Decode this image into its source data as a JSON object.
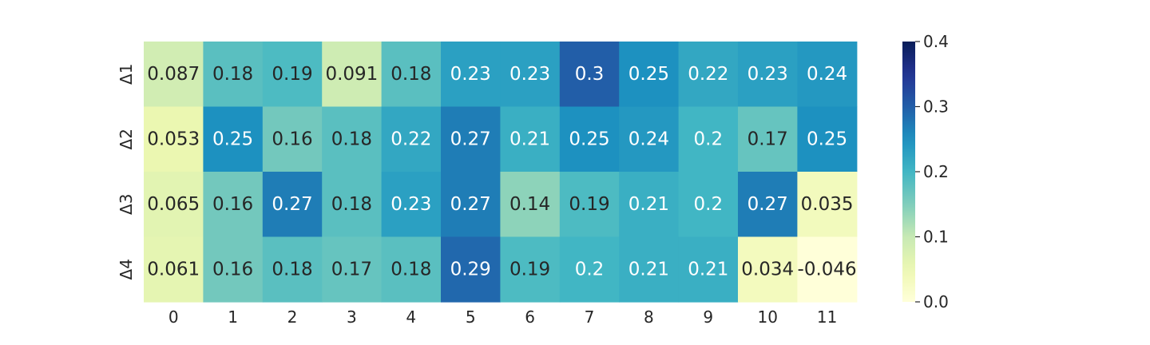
{
  "chart_data": {
    "type": "heatmap",
    "title": "",
    "xlabel": "",
    "ylabel": "",
    "x_categories": [
      "0",
      "1",
      "2",
      "3",
      "4",
      "5",
      "6",
      "7",
      "8",
      "9",
      "10",
      "11"
    ],
    "y_categories": [
      "Δ1",
      "Δ2",
      "Δ3",
      "Δ4"
    ],
    "values": [
      [
        0.087,
        0.18,
        0.19,
        0.091,
        0.18,
        0.23,
        0.23,
        0.3,
        0.25,
        0.22,
        0.23,
        0.24
      ],
      [
        0.053,
        0.25,
        0.16,
        0.18,
        0.22,
        0.27,
        0.21,
        0.25,
        0.24,
        0.2,
        0.17,
        0.25
      ],
      [
        0.065,
        0.16,
        0.27,
        0.18,
        0.23,
        0.27,
        0.14,
        0.19,
        0.21,
        0.2,
        0.27,
        0.035
      ],
      [
        0.061,
        0.16,
        0.18,
        0.17,
        0.18,
        0.29,
        0.19,
        0.2,
        0.21,
        0.21,
        0.034,
        -0.046
      ]
    ],
    "labels": [
      [
        "0.087",
        "0.18",
        "0.19",
        "0.091",
        "0.18",
        "0.23",
        "0.23",
        "0.3",
        "0.25",
        "0.22",
        "0.23",
        "0.24"
      ],
      [
        "0.053",
        "0.25",
        "0.16",
        "0.18",
        "0.22",
        "0.27",
        "0.21",
        "0.25",
        "0.24",
        "0.2",
        "0.17",
        "0.25"
      ],
      [
        "0.065",
        "0.16",
        "0.27",
        "0.18",
        "0.23",
        "0.27",
        "0.14",
        "0.19",
        "0.21",
        "0.2",
        "0.27",
        "0.035"
      ],
      [
        "0.061",
        "0.16",
        "0.18",
        "0.17",
        "0.18",
        "0.29",
        "0.19",
        "0.2",
        "0.21",
        "0.21",
        "0.034",
        "-0.046"
      ]
    ],
    "colormap": "YlGnBu",
    "vmin": 0.0,
    "vmax": 0.4,
    "colorbar_ticks": [
      0.0,
      0.1,
      0.2,
      0.3,
      0.4
    ],
    "colorbar_tick_labels": [
      "0.0",
      "0.1",
      "0.2",
      "0.3",
      "0.4"
    ],
    "grid": false,
    "colorbar_placement": "right",
    "annotation_colors": {
      "dark": "#262626",
      "light": "#ffffff"
    }
  }
}
